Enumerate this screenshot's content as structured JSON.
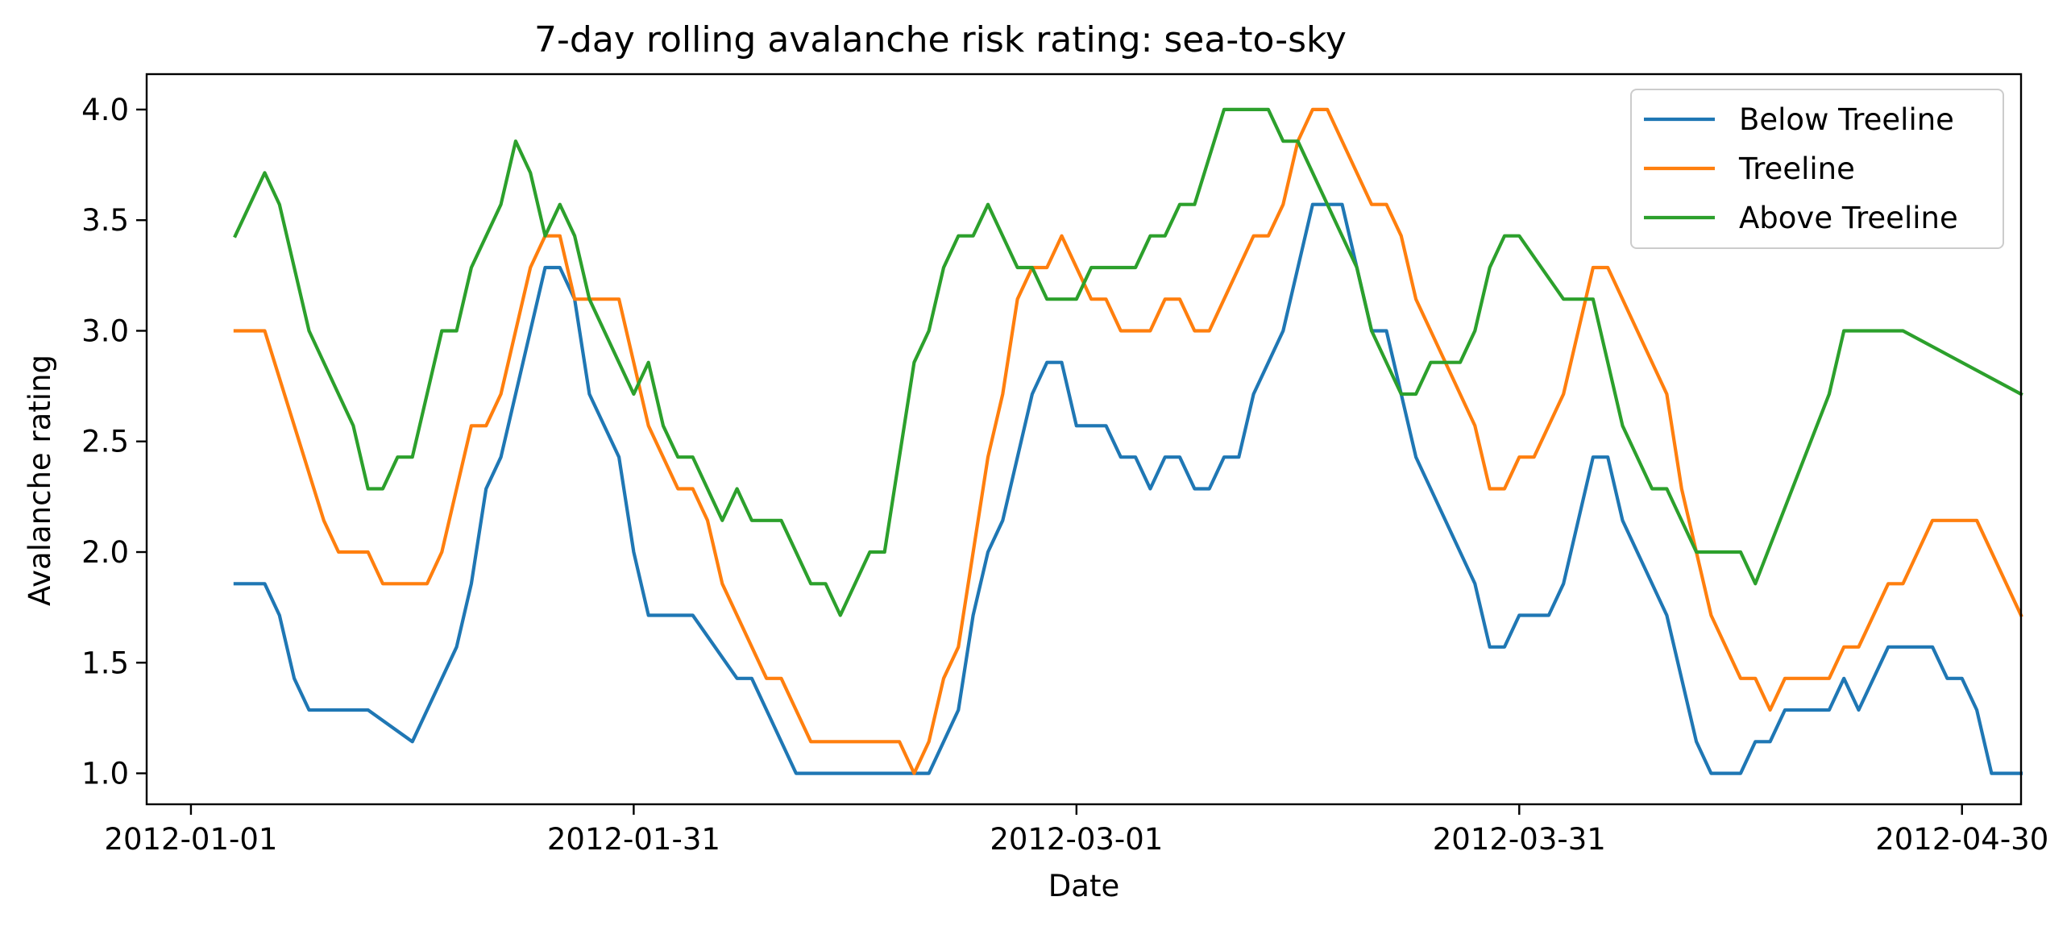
{
  "chart_data": {
    "type": "line",
    "title": "7-day rolling avalanche risk rating: sea-to-sky",
    "xlabel": "Date",
    "ylabel": "Avalanche rating",
    "xlim": [
      "2011-12-29",
      "2012-05-04"
    ],
    "ylim": [
      0.86,
      4.16
    ],
    "xticks": [
      "2012-01-01",
      "2012-01-31",
      "2012-03-01",
      "2012-03-31",
      "2012-04-30"
    ],
    "yticks": [
      "1.0",
      "1.5",
      "2.0",
      "2.5",
      "3.0",
      "3.5",
      "4.0"
    ],
    "grid": false,
    "legend_position": "top-right",
    "series": [
      {
        "name": "Below Treeline",
        "color": "#1f77b4",
        "points": [
          [
            "2012-01-04",
            1.857
          ],
          [
            "2012-01-06",
            1.857
          ],
          [
            "2012-01-07",
            1.714
          ],
          [
            "2012-01-08",
            1.429
          ],
          [
            "2012-01-09",
            1.286
          ],
          [
            "2012-01-12",
            1.286
          ],
          [
            "2012-01-13",
            1.286
          ],
          [
            "2012-01-16",
            1.143
          ],
          [
            "2012-01-19",
            1.571
          ],
          [
            "2012-01-20",
            1.857
          ],
          [
            "2012-01-21",
            2.286
          ],
          [
            "2012-01-22",
            2.429
          ],
          [
            "2012-01-25",
            3.286
          ],
          [
            "2012-01-26",
            3.286
          ],
          [
            "2012-01-27",
            3.143
          ],
          [
            "2012-01-28",
            2.714
          ],
          [
            "2012-01-30",
            2.429
          ],
          [
            "2012-01-31",
            2.0
          ],
          [
            "2012-02-01",
            1.714
          ],
          [
            "2012-02-04",
            1.714
          ],
          [
            "2012-02-07",
            1.429
          ],
          [
            "2012-02-08",
            1.429
          ],
          [
            "2012-02-11",
            1.0
          ],
          [
            "2012-02-19",
            1.0
          ],
          [
            "2012-02-20",
            1.0
          ],
          [
            "2012-02-22",
            1.286
          ],
          [
            "2012-02-23",
            1.714
          ],
          [
            "2012-02-24",
            2.0
          ],
          [
            "2012-02-25",
            2.143
          ],
          [
            "2012-02-27",
            2.714
          ],
          [
            "2012-02-28",
            2.857
          ],
          [
            "2012-02-29",
            2.857
          ],
          [
            "2012-03-01",
            2.571
          ],
          [
            "2012-03-03",
            2.571
          ],
          [
            "2012-03-04",
            2.429
          ],
          [
            "2012-03-05",
            2.429
          ],
          [
            "2012-03-06",
            2.286
          ],
          [
            "2012-03-07",
            2.429
          ],
          [
            "2012-03-08",
            2.429
          ],
          [
            "2012-03-09",
            2.286
          ],
          [
            "2012-03-10",
            2.286
          ],
          [
            "2012-03-11",
            2.429
          ],
          [
            "2012-03-12",
            2.429
          ],
          [
            "2012-03-13",
            2.714
          ],
          [
            "2012-03-15",
            3.0
          ],
          [
            "2012-03-17",
            3.571
          ],
          [
            "2012-03-19",
            3.571
          ],
          [
            "2012-03-21",
            3.0
          ],
          [
            "2012-03-22",
            3.0
          ],
          [
            "2012-03-24",
            2.429
          ],
          [
            "2012-03-28",
            1.857
          ],
          [
            "2012-03-29",
            1.571
          ],
          [
            "2012-03-30",
            1.571
          ],
          [
            "2012-03-31",
            1.714
          ],
          [
            "2012-04-02",
            1.714
          ],
          [
            "2012-04-03",
            1.857
          ],
          [
            "2012-04-05",
            2.429
          ],
          [
            "2012-04-06",
            2.429
          ],
          [
            "2012-04-07",
            2.143
          ],
          [
            "2012-04-10",
            1.714
          ],
          [
            "2012-04-12",
            1.143
          ],
          [
            "2012-04-13",
            1.0
          ],
          [
            "2012-04-15",
            1.0
          ],
          [
            "2012-04-16",
            1.143
          ],
          [
            "2012-04-17",
            1.143
          ],
          [
            "2012-04-18",
            1.286
          ],
          [
            "2012-04-21",
            1.286
          ],
          [
            "2012-04-22",
            1.429
          ],
          [
            "2012-04-23",
            1.286
          ],
          [
            "2012-04-25",
            1.571
          ],
          [
            "2012-04-28",
            1.571
          ],
          [
            "2012-04-29",
            1.429
          ],
          [
            "2012-04-30",
            1.429
          ],
          [
            "2012-05-01",
            1.286
          ],
          [
            "2012-05-02",
            1.0
          ],
          [
            "2012-05-04",
            1.0
          ]
        ]
      },
      {
        "name": "Treeline",
        "color": "#ff7f0e",
        "points": [
          [
            "2012-01-04",
            3.0
          ],
          [
            "2012-01-06",
            3.0
          ],
          [
            "2012-01-10",
            2.143
          ],
          [
            "2012-01-11",
            2.0
          ],
          [
            "2012-01-13",
            2.0
          ],
          [
            "2012-01-14",
            1.857
          ],
          [
            "2012-01-17",
            1.857
          ],
          [
            "2012-01-18",
            2.0
          ],
          [
            "2012-01-20",
            2.571
          ],
          [
            "2012-01-21",
            2.571
          ],
          [
            "2012-01-22",
            2.714
          ],
          [
            "2012-01-24",
            3.286
          ],
          [
            "2012-01-25",
            3.429
          ],
          [
            "2012-01-26",
            3.429
          ],
          [
            "2012-01-27",
            3.143
          ],
          [
            "2012-01-30",
            3.143
          ],
          [
            "2012-02-01",
            2.571
          ],
          [
            "2012-02-03",
            2.286
          ],
          [
            "2012-02-04",
            2.286
          ],
          [
            "2012-02-05",
            2.143
          ],
          [
            "2012-02-06",
            1.857
          ],
          [
            "2012-02-09",
            1.429
          ],
          [
            "2012-02-10",
            1.429
          ],
          [
            "2012-02-12",
            1.143
          ],
          [
            "2012-02-18",
            1.143
          ],
          [
            "2012-02-19",
            1.0
          ],
          [
            "2012-02-20",
            1.143
          ],
          [
            "2012-02-21",
            1.429
          ],
          [
            "2012-02-22",
            1.571
          ],
          [
            "2012-02-24",
            2.429
          ],
          [
            "2012-02-25",
            2.714
          ],
          [
            "2012-02-26",
            3.143
          ],
          [
            "2012-02-27",
            3.286
          ],
          [
            "2012-02-28",
            3.286
          ],
          [
            "2012-02-29",
            3.429
          ],
          [
            "2012-03-02",
            3.143
          ],
          [
            "2012-03-03",
            3.143
          ],
          [
            "2012-03-04",
            3.0
          ],
          [
            "2012-03-06",
            3.0
          ],
          [
            "2012-03-07",
            3.143
          ],
          [
            "2012-03-08",
            3.143
          ],
          [
            "2012-03-09",
            3.0
          ],
          [
            "2012-03-10",
            3.0
          ],
          [
            "2012-03-13",
            3.429
          ],
          [
            "2012-03-14",
            3.429
          ],
          [
            "2012-03-15",
            3.571
          ],
          [
            "2012-03-16",
            3.857
          ],
          [
            "2012-03-17",
            4.0
          ],
          [
            "2012-03-18",
            4.0
          ],
          [
            "2012-03-21",
            3.571
          ],
          [
            "2012-03-22",
            3.571
          ],
          [
            "2012-03-23",
            3.429
          ],
          [
            "2012-03-24",
            3.143
          ],
          [
            "2012-03-28",
            2.571
          ],
          [
            "2012-03-29",
            2.286
          ],
          [
            "2012-03-30",
            2.286
          ],
          [
            "2012-03-31",
            2.429
          ],
          [
            "2012-04-01",
            2.429
          ],
          [
            "2012-04-03",
            2.714
          ],
          [
            "2012-04-05",
            3.286
          ],
          [
            "2012-04-06",
            3.286
          ],
          [
            "2012-04-10",
            2.714
          ],
          [
            "2012-04-11",
            2.286
          ],
          [
            "2012-04-13",
            1.714
          ],
          [
            "2012-04-15",
            1.429
          ],
          [
            "2012-04-16",
            1.429
          ],
          [
            "2012-04-17",
            1.286
          ],
          [
            "2012-04-18",
            1.429
          ],
          [
            "2012-04-21",
            1.429
          ],
          [
            "2012-04-22",
            1.571
          ],
          [
            "2012-04-23",
            1.571
          ],
          [
            "2012-04-25",
            1.857
          ],
          [
            "2012-04-26",
            1.857
          ],
          [
            "2012-04-28",
            2.143
          ],
          [
            "2012-05-01",
            2.143
          ],
          [
            "2012-05-04",
            1.714
          ]
        ]
      },
      {
        "name": "Above Treeline",
        "color": "#2ca02c",
        "points": [
          [
            "2012-01-04",
            3.429
          ],
          [
            "2012-01-06",
            3.714
          ],
          [
            "2012-01-07",
            3.571
          ],
          [
            "2012-01-09",
            3.0
          ],
          [
            "2012-01-12",
            2.571
          ],
          [
            "2012-01-13",
            2.286
          ],
          [
            "2012-01-14",
            2.286
          ],
          [
            "2012-01-15",
            2.429
          ],
          [
            "2012-01-16",
            2.429
          ],
          [
            "2012-01-18",
            3.0
          ],
          [
            "2012-01-19",
            3.0
          ],
          [
            "2012-01-20",
            3.286
          ],
          [
            "2012-01-22",
            3.571
          ],
          [
            "2012-01-23",
            3.857
          ],
          [
            "2012-01-24",
            3.714
          ],
          [
            "2012-01-25",
            3.429
          ],
          [
            "2012-01-26",
            3.571
          ],
          [
            "2012-01-27",
            3.429
          ],
          [
            "2012-01-28",
            3.143
          ],
          [
            "2012-01-31",
            2.714
          ],
          [
            "2012-02-01",
            2.857
          ],
          [
            "2012-02-02",
            2.571
          ],
          [
            "2012-02-03",
            2.429
          ],
          [
            "2012-02-04",
            2.429
          ],
          [
            "2012-02-06",
            2.143
          ],
          [
            "2012-02-07",
            2.286
          ],
          [
            "2012-02-08",
            2.143
          ],
          [
            "2012-02-10",
            2.143
          ],
          [
            "2012-02-12",
            1.857
          ],
          [
            "2012-02-13",
            1.857
          ],
          [
            "2012-02-14",
            1.714
          ],
          [
            "2012-02-16",
            2.0
          ],
          [
            "2012-02-17",
            2.0
          ],
          [
            "2012-02-19",
            2.857
          ],
          [
            "2012-02-20",
            3.0
          ],
          [
            "2012-02-21",
            3.286
          ],
          [
            "2012-02-22",
            3.429
          ],
          [
            "2012-02-23",
            3.429
          ],
          [
            "2012-02-24",
            3.571
          ],
          [
            "2012-02-26",
            3.286
          ],
          [
            "2012-02-27",
            3.286
          ],
          [
            "2012-02-28",
            3.143
          ],
          [
            "2012-03-01",
            3.143
          ],
          [
            "2012-03-02",
            3.286
          ],
          [
            "2012-03-05",
            3.286
          ],
          [
            "2012-03-06",
            3.429
          ],
          [
            "2012-03-07",
            3.429
          ],
          [
            "2012-03-08",
            3.571
          ],
          [
            "2012-03-09",
            3.571
          ],
          [
            "2012-03-11",
            4.0
          ],
          [
            "2012-03-14",
            4.0
          ],
          [
            "2012-03-15",
            3.857
          ],
          [
            "2012-03-16",
            3.857
          ],
          [
            "2012-03-20",
            3.286
          ],
          [
            "2012-03-21",
            3.0
          ],
          [
            "2012-03-23",
            2.714
          ],
          [
            "2012-03-24",
            2.714
          ],
          [
            "2012-03-25",
            2.857
          ],
          [
            "2012-03-27",
            2.857
          ],
          [
            "2012-03-28",
            3.0
          ],
          [
            "2012-03-29",
            3.286
          ],
          [
            "2012-03-30",
            3.429
          ],
          [
            "2012-03-31",
            3.429
          ],
          [
            "2012-04-03",
            3.143
          ],
          [
            "2012-04-05",
            3.143
          ],
          [
            "2012-04-07",
            2.571
          ],
          [
            "2012-04-09",
            2.286
          ],
          [
            "2012-04-10",
            2.286
          ],
          [
            "2012-04-12",
            2.0
          ],
          [
            "2012-04-15",
            2.0
          ],
          [
            "2012-04-16",
            1.857
          ],
          [
            "2012-04-21",
            2.714
          ],
          [
            "2012-04-22",
            3.0
          ],
          [
            "2012-04-26",
            3.0
          ],
          [
            "2012-05-04",
            2.714
          ]
        ]
      }
    ]
  }
}
